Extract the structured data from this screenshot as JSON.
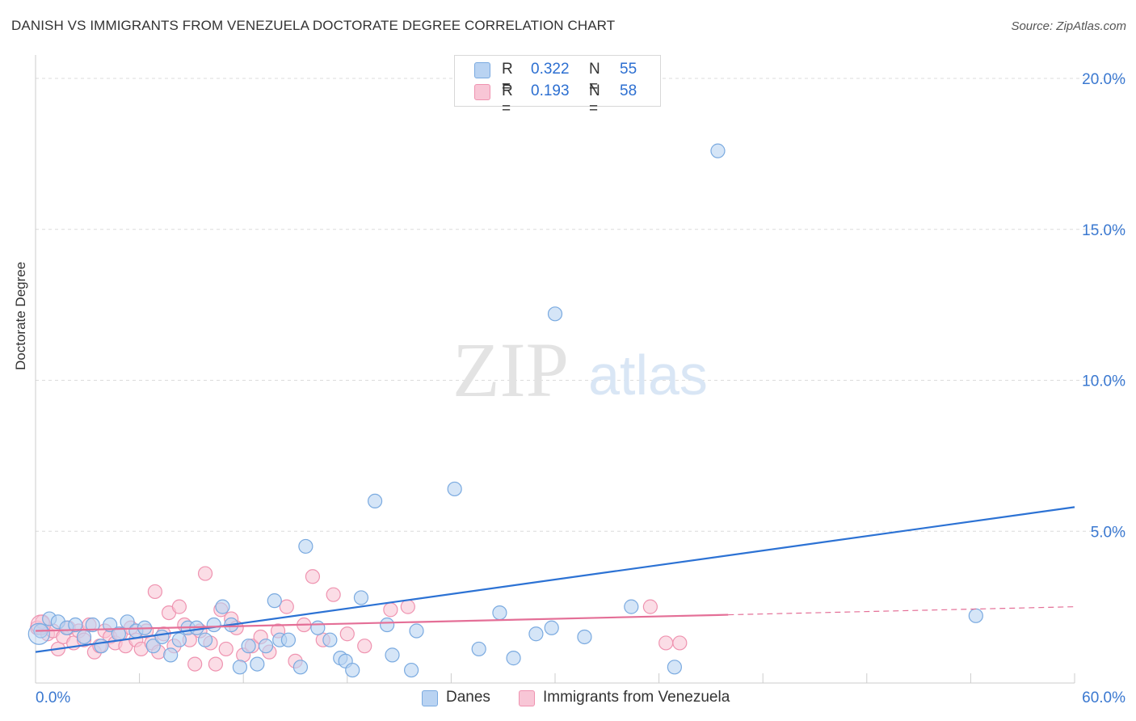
{
  "title": "DANISH VS IMMIGRANTS FROM VENEZUELA DOCTORATE DEGREE CORRELATION CHART",
  "source": "Source: ZipAtlas.com",
  "watermark": {
    "zip": "ZIP",
    "atlas": "atlas"
  },
  "legend": {
    "danes": {
      "r_label": "R =",
      "r_value": "0.322",
      "n_label": "N =",
      "n_value": "55"
    },
    "venezuela": {
      "r_label": "R =",
      "r_value": "0.193",
      "n_label": "N =",
      "n_value": "58"
    }
  },
  "bottom_legend": {
    "danes": "Danes",
    "venezuela": "Immigrants from Venezuela"
  },
  "colors": {
    "danes_fill": "#b9d3f2",
    "danes_stroke": "#7aaae0",
    "danes_line": "#2c72d4",
    "ven_fill": "#f8c6d6",
    "ven_stroke": "#ef93b0",
    "ven_line": "#e46f97",
    "tick_text": "#3a78d0",
    "grid": "#dcdcdc"
  },
  "chart_data": {
    "type": "scatter",
    "title": "DANISH VS IMMIGRANTS FROM VENEZUELA DOCTORATE DEGREE CORRELATION CHART",
    "xlabel": "",
    "ylabel": "Doctorate Degree",
    "xlim": [
      0,
      60
    ],
    "ylim": [
      0,
      21
    ],
    "x_tick_labels": [
      "0.0%",
      "60.0%"
    ],
    "y_ticks": [
      5,
      10,
      15,
      20
    ],
    "y_tick_labels": [
      "5.0%",
      "10.0%",
      "15.0%",
      "20.0%"
    ],
    "series": [
      {
        "name": "Danes",
        "r": 0.322,
        "n": 55,
        "trend": {
          "x0": 0,
          "y0": 1.0,
          "x1": 60,
          "y1": 5.8,
          "dashed_from": null
        },
        "points": [
          [
            0.3,
            1.7
          ],
          [
            0.8,
            2.1
          ],
          [
            1.3,
            2.0
          ],
          [
            1.8,
            1.8
          ],
          [
            2.3,
            1.9
          ],
          [
            2.8,
            1.5
          ],
          [
            3.3,
            1.9
          ],
          [
            3.8,
            1.2
          ],
          [
            4.3,
            1.9
          ],
          [
            4.8,
            1.6
          ],
          [
            5.3,
            2.0
          ],
          [
            5.8,
            1.7
          ],
          [
            6.3,
            1.8
          ],
          [
            6.8,
            1.2
          ],
          [
            7.3,
            1.5
          ],
          [
            7.8,
            0.9
          ],
          [
            8.3,
            1.4
          ],
          [
            8.8,
            1.8
          ],
          [
            9.3,
            1.8
          ],
          [
            9.8,
            1.4
          ],
          [
            10.3,
            1.9
          ],
          [
            10.8,
            2.5
          ],
          [
            11.3,
            1.9
          ],
          [
            11.8,
            0.5
          ],
          [
            12.3,
            1.2
          ],
          [
            12.8,
            0.6
          ],
          [
            13.3,
            1.2
          ],
          [
            13.8,
            2.7
          ],
          [
            14.1,
            1.4
          ],
          [
            14.6,
            1.4
          ],
          [
            15.3,
            0.5
          ],
          [
            15.6,
            4.5
          ],
          [
            16.3,
            1.8
          ],
          [
            17.0,
            1.4
          ],
          [
            17.6,
            0.8
          ],
          [
            17.9,
            0.7
          ],
          [
            18.3,
            0.4
          ],
          [
            18.8,
            2.8
          ],
          [
            19.6,
            6.0
          ],
          [
            20.3,
            1.9
          ],
          [
            20.6,
            0.9
          ],
          [
            21.7,
            0.4
          ],
          [
            22.0,
            1.7
          ],
          [
            24.2,
            6.4
          ],
          [
            25.6,
            1.1
          ],
          [
            26.8,
            2.3
          ],
          [
            27.6,
            0.8
          ],
          [
            28.9,
            1.6
          ],
          [
            30.0,
            12.2
          ],
          [
            29.8,
            1.8
          ],
          [
            31.7,
            1.5
          ],
          [
            34.4,
            2.5
          ],
          [
            36.9,
            0.5
          ],
          [
            39.4,
            17.6
          ],
          [
            54.3,
            2.2
          ]
        ]
      },
      {
        "name": "Immigrants from Venezuela",
        "r": 0.193,
        "n": 58,
        "trend": {
          "x0": 0,
          "y0": 1.7,
          "x1": 60,
          "y1": 2.5,
          "dashed_from": 40
        },
        "points": [
          [
            0.1,
            1.8
          ],
          [
            0.4,
            2.0
          ],
          [
            0.7,
            1.6
          ],
          [
            1.0,
            1.7
          ],
          [
            1.3,
            1.1
          ],
          [
            1.6,
            1.5
          ],
          [
            1.9,
            1.8
          ],
          [
            2.2,
            1.3
          ],
          [
            2.5,
            1.7
          ],
          [
            2.8,
            1.4
          ],
          [
            3.1,
            1.9
          ],
          [
            3.4,
            1.0
          ],
          [
            3.7,
            1.2
          ],
          [
            4.0,
            1.7
          ],
          [
            4.3,
            1.5
          ],
          [
            4.6,
            1.3
          ],
          [
            4.9,
            1.6
          ],
          [
            5.2,
            1.2
          ],
          [
            5.5,
            1.8
          ],
          [
            5.8,
            1.4
          ],
          [
            6.1,
            1.1
          ],
          [
            6.4,
            1.7
          ],
          [
            6.7,
            1.3
          ],
          [
            6.9,
            3.0
          ],
          [
            7.1,
            1.0
          ],
          [
            7.4,
            1.6
          ],
          [
            7.7,
            2.3
          ],
          [
            8.0,
            1.2
          ],
          [
            8.3,
            2.5
          ],
          [
            8.6,
            1.9
          ],
          [
            8.9,
            1.4
          ],
          [
            9.2,
            0.6
          ],
          [
            9.5,
            1.7
          ],
          [
            9.8,
            3.6
          ],
          [
            10.1,
            1.3
          ],
          [
            10.4,
            0.6
          ],
          [
            10.7,
            2.4
          ],
          [
            11.0,
            1.1
          ],
          [
            11.3,
            2.1
          ],
          [
            11.6,
            1.8
          ],
          [
            12.0,
            0.9
          ],
          [
            12.5,
            1.2
          ],
          [
            13.0,
            1.5
          ],
          [
            13.5,
            1.0
          ],
          [
            14.0,
            1.7
          ],
          [
            14.5,
            2.5
          ],
          [
            15.0,
            0.7
          ],
          [
            15.5,
            1.9
          ],
          [
            16.0,
            3.5
          ],
          [
            16.6,
            1.4
          ],
          [
            17.2,
            2.9
          ],
          [
            18.0,
            1.6
          ],
          [
            19.0,
            1.2
          ],
          [
            20.5,
            2.4
          ],
          [
            21.5,
            2.5
          ],
          [
            35.5,
            2.5
          ],
          [
            36.4,
            1.3
          ],
          [
            37.2,
            1.3
          ]
        ]
      }
    ]
  }
}
